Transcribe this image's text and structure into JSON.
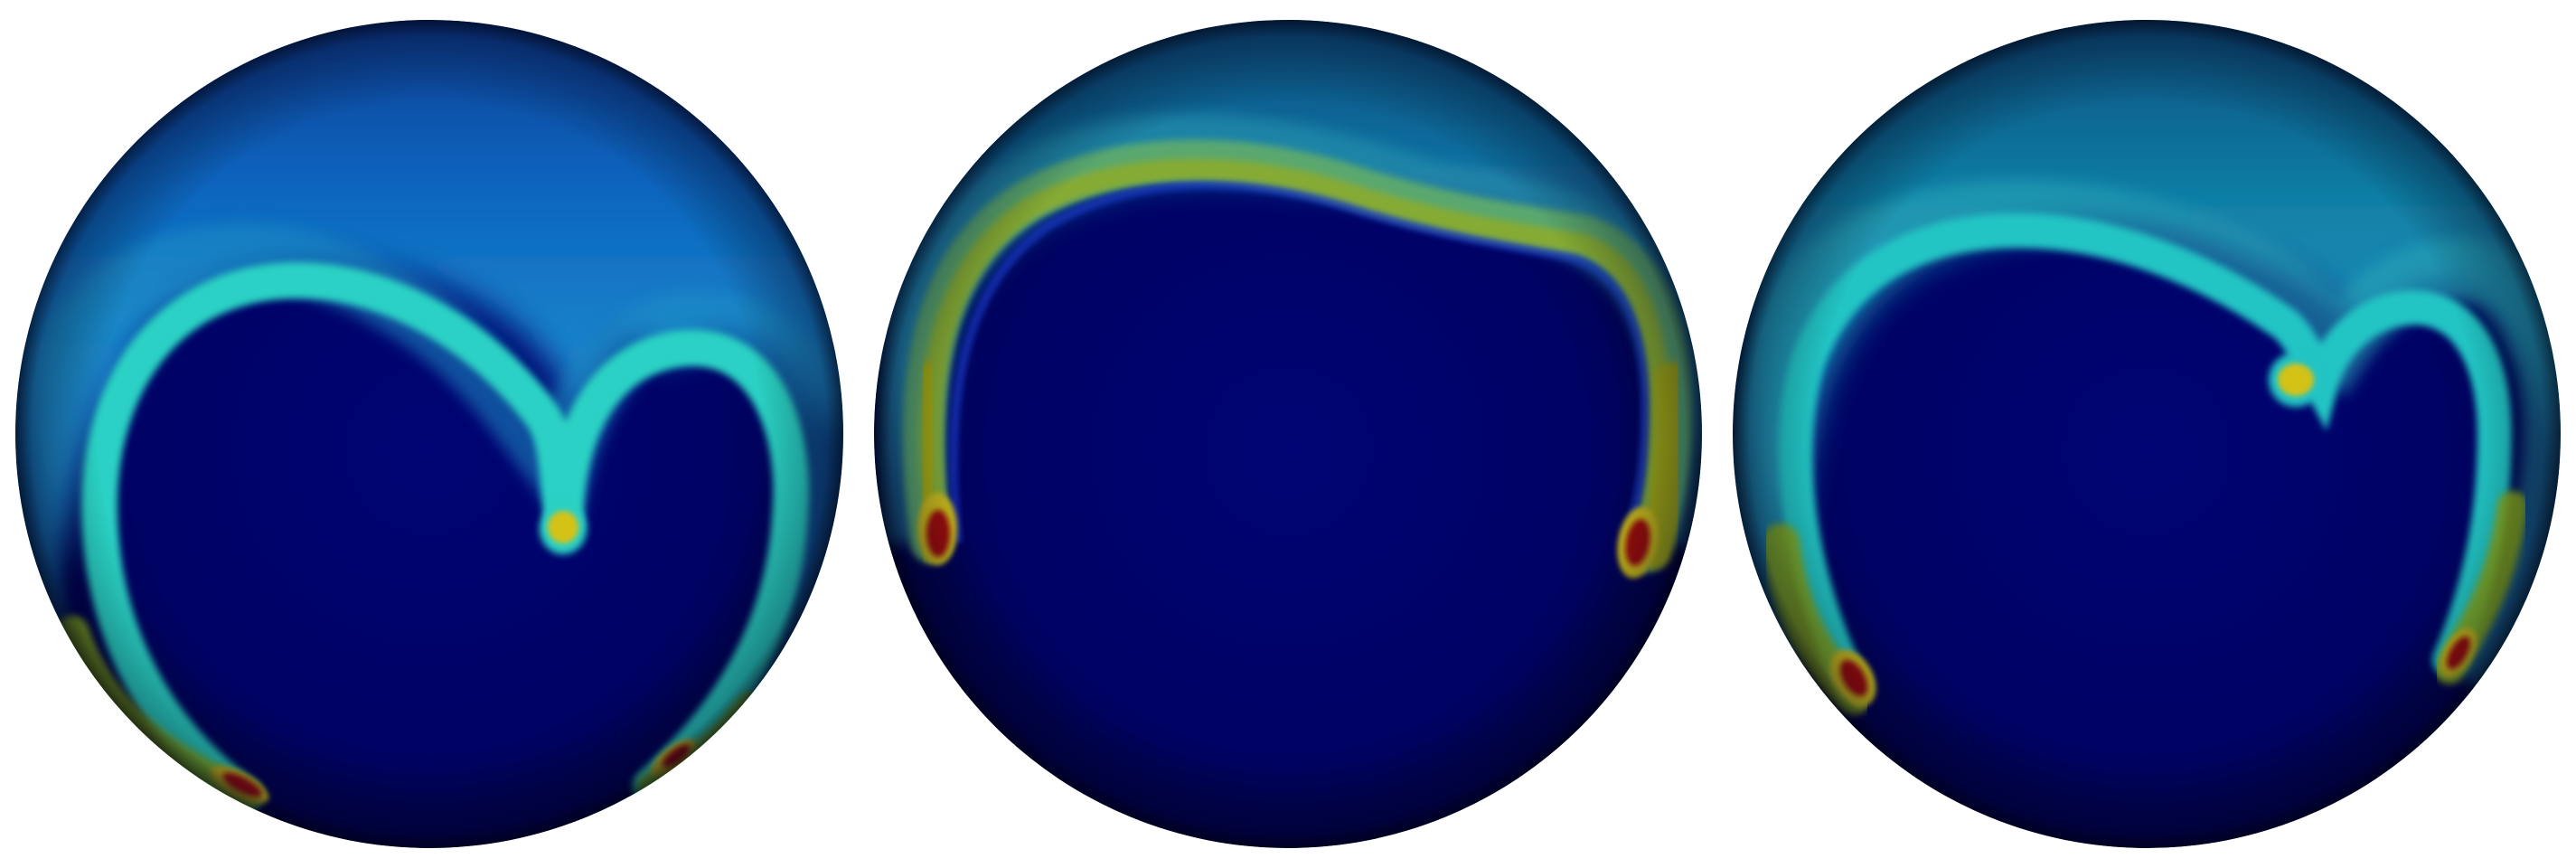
{
  "figure": {
    "panels": [
      {
        "id": "sphere-1",
        "plume": "split-arch",
        "colormap": "jet"
      },
      {
        "id": "sphere-2",
        "plume": "wide-arch",
        "colormap": "jet"
      },
      {
        "id": "sphere-3",
        "plume": "split-arch-offset",
        "colormap": "jet"
      }
    ],
    "colors": {
      "background": "#ffffff",
      "deep": "#00005e",
      "low": "#0a4aa8",
      "mid": "#22c4c8",
      "high": "#b4b814",
      "peak": "#9a0c0c"
    }
  }
}
